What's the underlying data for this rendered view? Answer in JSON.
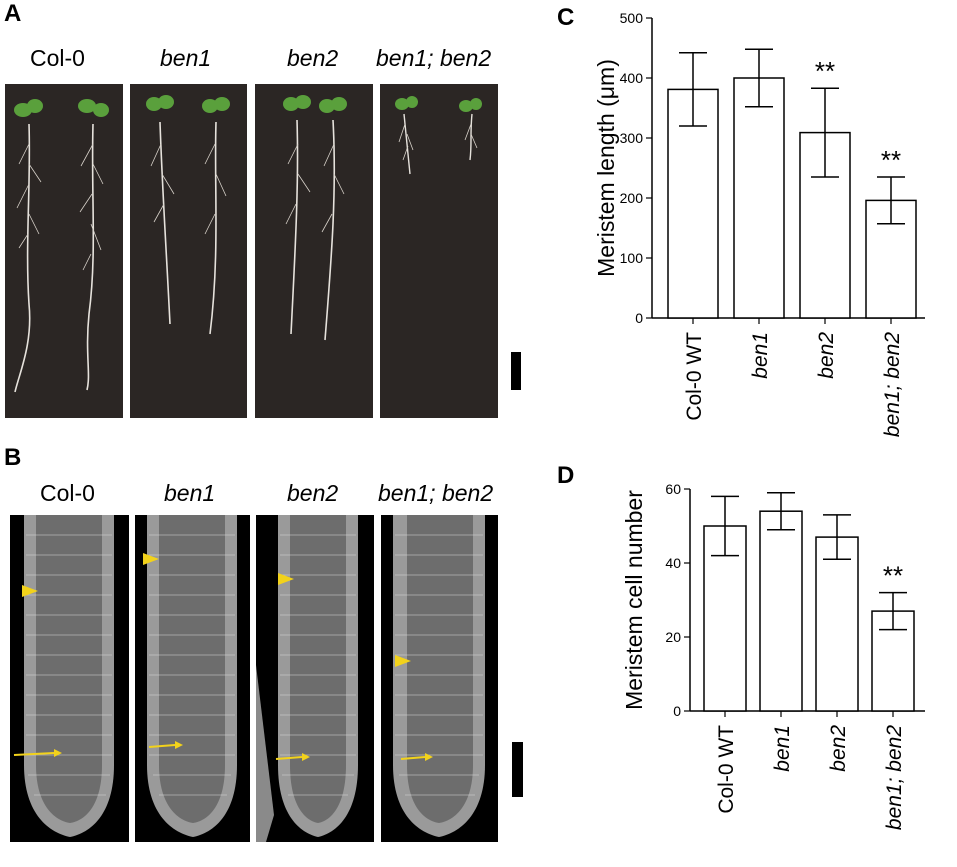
{
  "panels": {
    "A": {
      "letter": "A",
      "labels": [
        "Col-0",
        "ben1",
        "ben2",
        "ben1; ben2"
      ]
    },
    "B": {
      "letter": "B",
      "labels": [
        "Col-0",
        "ben1",
        "ben2",
        "ben1; ben2"
      ]
    },
    "C": {
      "letter": "C"
    },
    "D": {
      "letter": "D"
    }
  },
  "chart_data": [
    {
      "type": "bar",
      "panel": "C",
      "ylabel": "Meristem length (μm)",
      "categories": [
        "Col-0 WT",
        "ben1",
        "ben2",
        "ben1; ben2"
      ],
      "values": [
        381,
        400,
        309,
        196
      ],
      "errors": [
        61,
        48,
        74,
        39
      ],
      "significance": [
        "",
        "",
        "**",
        "**"
      ],
      "ylim": [
        0,
        500
      ],
      "yticks": [
        0,
        100,
        200,
        300,
        400,
        500
      ]
    },
    {
      "type": "bar",
      "panel": "D",
      "ylabel": "Meristem cell number",
      "categories": [
        "Col-0 WT",
        "ben1",
        "ben2",
        "ben1; ben2"
      ],
      "values": [
        50,
        54,
        47,
        27
      ],
      "errors": [
        8,
        5,
        6,
        5
      ],
      "significance": [
        "",
        "",
        "",
        "**"
      ],
      "ylim": [
        0,
        60
      ],
      "yticks": [
        0,
        20,
        40,
        60
      ]
    }
  ]
}
